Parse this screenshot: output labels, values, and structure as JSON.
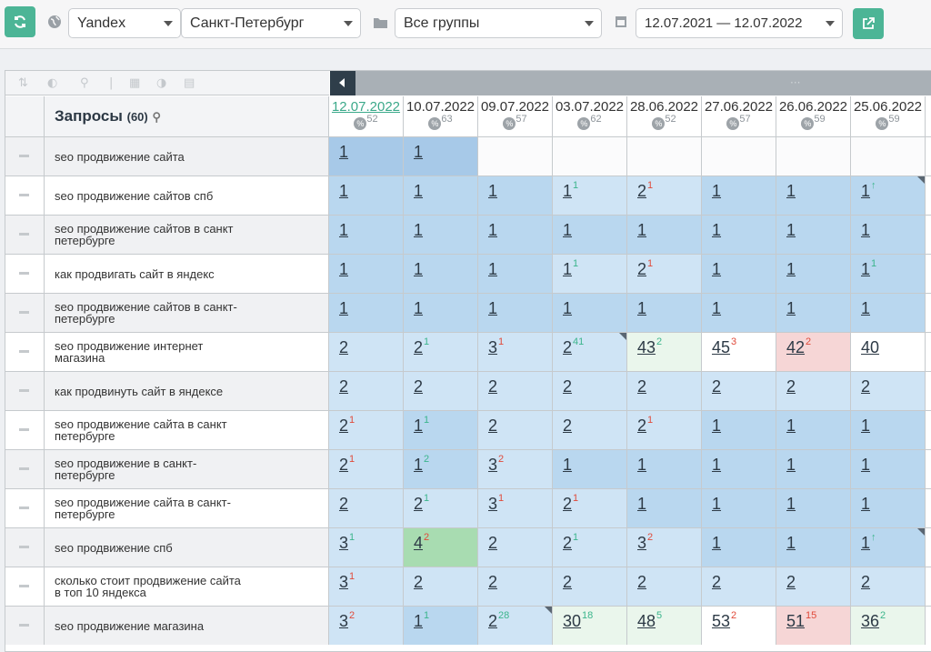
{
  "toolbar": {
    "search_engine": "Yandex",
    "region": "Санкт-Петербург",
    "group": "Все группы",
    "date_range": "12.07.2021 — 12.07.2022"
  },
  "table": {
    "queries_title": "Запросы",
    "queries_count": "(60)",
    "columns": [
      {
        "date": "12.07.2022",
        "count": "52"
      },
      {
        "date": "10.07.2022",
        "count": "63"
      },
      {
        "date": "09.07.2022",
        "count": "57"
      },
      {
        "date": "03.07.2022",
        "count": "62"
      },
      {
        "date": "28.06.2022",
        "count": "52"
      },
      {
        "date": "27.06.2022",
        "count": "57"
      },
      {
        "date": "26.06.2022",
        "count": "59"
      },
      {
        "date": "25.06.2022",
        "count": "59"
      }
    ],
    "rows": [
      {
        "query": "seo продвижение сайта",
        "cells": [
          [
            "1",
            "",
            ""
          ],
          [
            "1",
            "",
            ""
          ],
          [
            "",
            "",
            ""
          ],
          [
            "",
            "",
            ""
          ],
          [
            "",
            "",
            ""
          ],
          [
            "",
            "",
            ""
          ],
          [
            "",
            "",
            ""
          ],
          [
            "",
            "",
            ""
          ]
        ]
      },
      {
        "query": "seo продвижение сайтов спб",
        "cells": [
          [
            "1",
            "",
            ""
          ],
          [
            "1",
            "",
            ""
          ],
          [
            "1",
            "",
            ""
          ],
          [
            "1",
            "up",
            "1"
          ],
          [
            "2",
            "dn",
            "1"
          ],
          [
            "1",
            "",
            ""
          ],
          [
            "1",
            "",
            ""
          ],
          [
            "1",
            "up",
            "↑"
          ]
        ]
      },
      {
        "query": "seo продвижение сайтов в санкт петербурге",
        "cells": [
          [
            "1",
            "",
            ""
          ],
          [
            "1",
            "",
            ""
          ],
          [
            "1",
            "",
            ""
          ],
          [
            "1",
            "",
            ""
          ],
          [
            "1",
            "",
            ""
          ],
          [
            "1",
            "",
            ""
          ],
          [
            "1",
            "",
            ""
          ],
          [
            "1",
            "",
            ""
          ]
        ]
      },
      {
        "query": "как продвигать сайт в яндекс",
        "cells": [
          [
            "1",
            "",
            ""
          ],
          [
            "1",
            "",
            ""
          ],
          [
            "1",
            "",
            ""
          ],
          [
            "1",
            "up",
            "1"
          ],
          [
            "2",
            "dn",
            "1"
          ],
          [
            "1",
            "",
            ""
          ],
          [
            "1",
            "",
            ""
          ],
          [
            "1",
            "up",
            "1"
          ]
        ]
      },
      {
        "query": "seo продвижение сайтов в санкт-петербурге",
        "cells": [
          [
            "1",
            "",
            ""
          ],
          [
            "1",
            "",
            ""
          ],
          [
            "1",
            "",
            ""
          ],
          [
            "1",
            "",
            ""
          ],
          [
            "1",
            "",
            ""
          ],
          [
            "1",
            "",
            ""
          ],
          [
            "1",
            "",
            ""
          ],
          [
            "1",
            "",
            ""
          ]
        ]
      },
      {
        "query": "seo продвижение интернет магазина",
        "cells": [
          [
            "2",
            "",
            ""
          ],
          [
            "2",
            "up",
            "1"
          ],
          [
            "3",
            "dn",
            "1"
          ],
          [
            "2",
            "up",
            "41"
          ],
          [
            "43",
            "up",
            "2"
          ],
          [
            "45",
            "dn",
            "3"
          ],
          [
            "42",
            "dn",
            "2"
          ],
          [
            "40",
            "",
            ""
          ]
        ]
      },
      {
        "query": "как продвинуть сайт в яндексе",
        "cells": [
          [
            "2",
            "",
            ""
          ],
          [
            "2",
            "",
            ""
          ],
          [
            "2",
            "",
            ""
          ],
          [
            "2",
            "",
            ""
          ],
          [
            "2",
            "",
            ""
          ],
          [
            "2",
            "",
            ""
          ],
          [
            "2",
            "",
            ""
          ],
          [
            "2",
            "",
            ""
          ]
        ]
      },
      {
        "query": "seo продвижение сайта в санкт петербурге",
        "cells": [
          [
            "2",
            "dn",
            "1"
          ],
          [
            "1",
            "up",
            "1"
          ],
          [
            "2",
            "",
            ""
          ],
          [
            "2",
            "",
            ""
          ],
          [
            "2",
            "dn",
            "1"
          ],
          [
            "1",
            "",
            ""
          ],
          [
            "1",
            "",
            ""
          ],
          [
            "1",
            "",
            ""
          ]
        ]
      },
      {
        "query": "seo продвижение в санкт-петербурге",
        "cells": [
          [
            "2",
            "dn",
            "1"
          ],
          [
            "1",
            "up",
            "2"
          ],
          [
            "3",
            "dn",
            "2"
          ],
          [
            "1",
            "",
            ""
          ],
          [
            "1",
            "",
            ""
          ],
          [
            "1",
            "",
            ""
          ],
          [
            "1",
            "",
            ""
          ],
          [
            "1",
            "",
            ""
          ]
        ]
      },
      {
        "query": "seo продвижение сайта в санкт-петербурге",
        "cells": [
          [
            "2",
            "",
            ""
          ],
          [
            "2",
            "up",
            "1"
          ],
          [
            "3",
            "dn",
            "1"
          ],
          [
            "2",
            "dn",
            "1"
          ],
          [
            "1",
            "",
            ""
          ],
          [
            "1",
            "",
            ""
          ],
          [
            "1",
            "",
            ""
          ],
          [
            "1",
            "",
            ""
          ]
        ]
      },
      {
        "query": "seo продвижение спб",
        "cells": [
          [
            "3",
            "up",
            "1"
          ],
          [
            "4",
            "dn",
            "2"
          ],
          [
            "2",
            "",
            ""
          ],
          [
            "2",
            "up",
            "1"
          ],
          [
            "3",
            "dn",
            "2"
          ],
          [
            "1",
            "",
            ""
          ],
          [
            "1",
            "",
            ""
          ],
          [
            "1",
            "up",
            "↑"
          ]
        ]
      },
      {
        "query": "сколько стоит продвижение сайта в топ 10 яндекса",
        "cells": [
          [
            "3",
            "dn",
            "1"
          ],
          [
            "2",
            "",
            ""
          ],
          [
            "2",
            "",
            ""
          ],
          [
            "2",
            "",
            ""
          ],
          [
            "2",
            "",
            ""
          ],
          [
            "2",
            "",
            ""
          ],
          [
            "2",
            "",
            ""
          ],
          [
            "2",
            "",
            ""
          ]
        ]
      },
      {
        "query": "seo продвижение магазина",
        "cells": [
          [
            "3",
            "dn",
            "2"
          ],
          [
            "1",
            "up",
            "1"
          ],
          [
            "2",
            "up",
            "28"
          ],
          [
            "30",
            "up",
            "18"
          ],
          [
            "48",
            "up",
            "5"
          ],
          [
            "53",
            "dn",
            "2"
          ],
          [
            "51",
            "dn",
            "15"
          ],
          [
            "36",
            "up",
            "2"
          ]
        ]
      }
    ]
  }
}
